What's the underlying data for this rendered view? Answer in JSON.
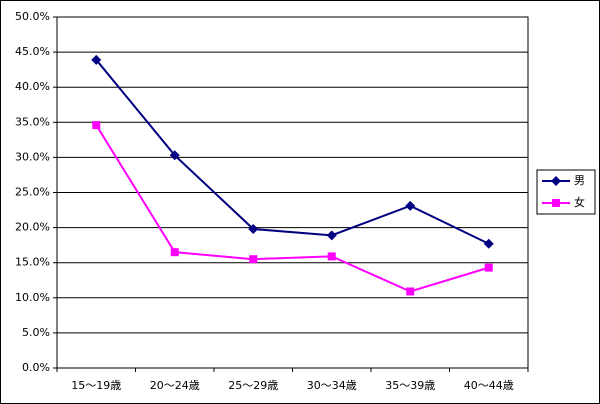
{
  "chart_data": {
    "type": "line",
    "categories": [
      "15～19歳",
      "20～24歳",
      "25～29歳",
      "30～34歳",
      "35～39歳",
      "40～44歳"
    ],
    "series": [
      {
        "name": "男",
        "color": "#000080",
        "marker": "diamond",
        "values": [
          43.9,
          30.3,
          19.8,
          18.9,
          23.1,
          17.7
        ]
      },
      {
        "name": "女",
        "color": "#ff00ff",
        "marker": "square",
        "values": [
          34.6,
          16.5,
          15.5,
          15.9,
          10.9,
          14.3
        ]
      }
    ],
    "ylim": [
      0,
      50
    ],
    "yticks": [
      {
        "value": 0,
        "label": "0.0%"
      },
      {
        "value": 5,
        "label": "5.0%"
      },
      {
        "value": 10,
        "label": "10.0%"
      },
      {
        "value": 15,
        "label": "15.0%"
      },
      {
        "value": 20,
        "label": "20.0%"
      },
      {
        "value": 25,
        "label": "25.0%"
      },
      {
        "value": 30,
        "label": "30.0%"
      },
      {
        "value": 35,
        "label": "35.0%"
      },
      {
        "value": 40,
        "label": "40.0%"
      },
      {
        "value": 45,
        "label": "45.0%"
      },
      {
        "value": 50,
        "label": "50.0%"
      }
    ],
    "grid": true,
    "legend": "right"
  }
}
